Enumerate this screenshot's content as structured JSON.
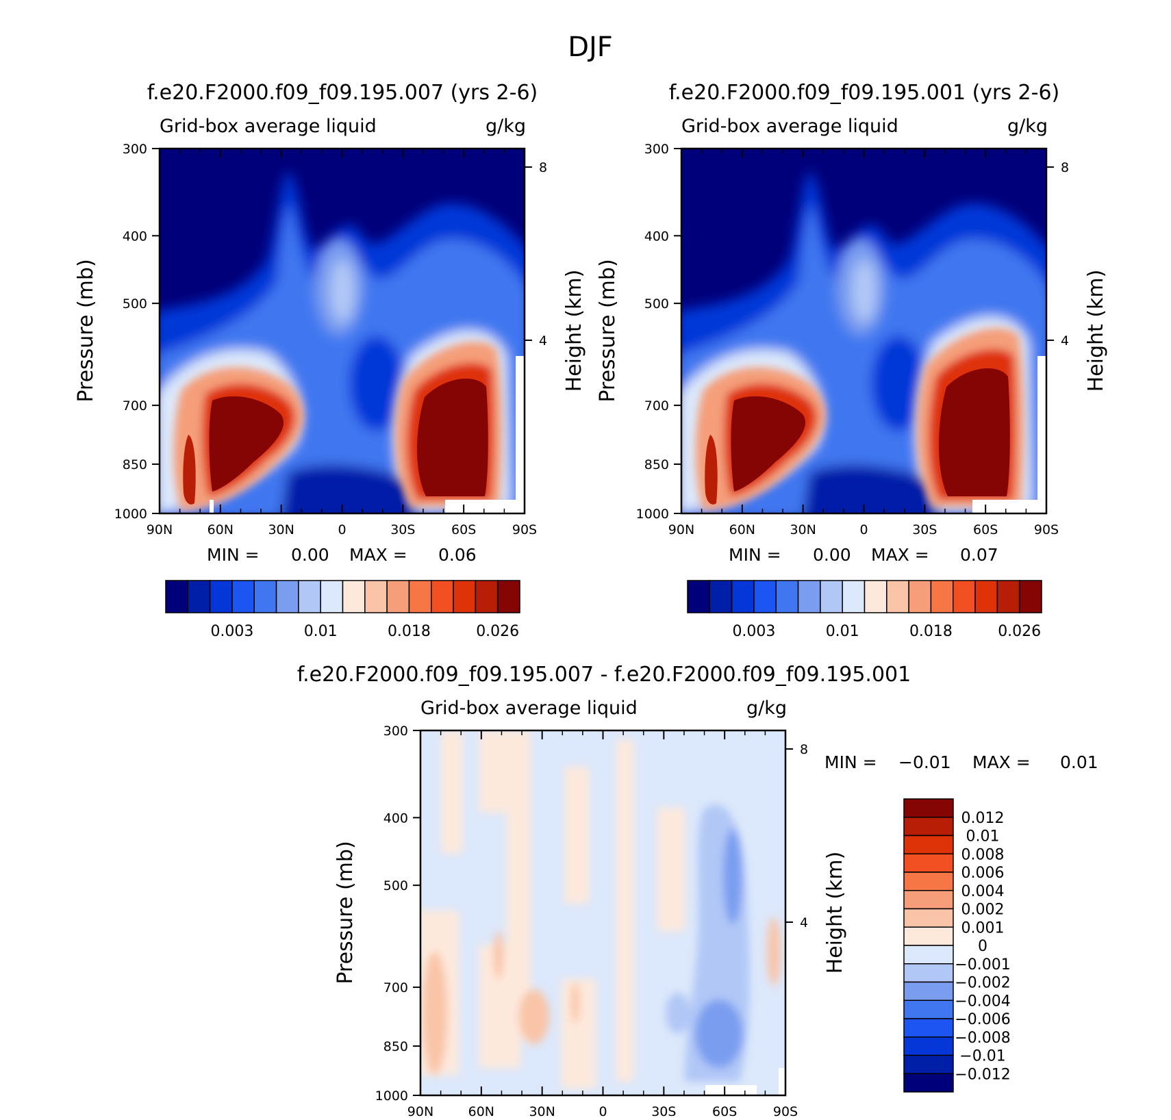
{
  "figure": {
    "title": "DJF"
  },
  "chart_data": [
    {
      "type": "heatmap",
      "title": "f.e20.F2000.f09_f09.195.007 (yrs 2-6)",
      "subtitle_left": "Grid-box average liquid",
      "subtitle_right": "g/kg",
      "xlabel": "",
      "ylabel": "Pressure (mb)",
      "ylabel_right": "Height (km)",
      "x_ticks": [
        "90N",
        "60N",
        "30N",
        "0",
        "30S",
        "60S",
        "90S"
      ],
      "y_ticks": [
        "300",
        "400",
        "500",
        "700",
        "850",
        "1000"
      ],
      "y_right_ticks": [
        "8",
        "4"
      ],
      "min_label": "MIN =",
      "min_value": "0.00",
      "max_label": "MAX =",
      "max_value": "0.06",
      "colorbar_labels": [
        "0.003",
        "0.01",
        "0.018",
        "0.026"
      ],
      "colorbar_colors": [
        "#00007a",
        "#001fa8",
        "#0537d8",
        "#1d55f2",
        "#4077f0",
        "#7a9df0",
        "#b1c7f6",
        "#dce8fb",
        "#fde9dc",
        "#f9c4a7",
        "#f59e79",
        "#f77646",
        "#f24f22",
        "#de3208",
        "#b81e06",
        "#850404"
      ]
    },
    {
      "type": "heatmap",
      "title": "f.e20.F2000.f09_f09.195.001 (yrs 2-6)",
      "subtitle_left": "Grid-box average liquid",
      "subtitle_right": "g/kg",
      "xlabel": "",
      "ylabel": "Pressure (mb)",
      "ylabel_right": "Height (km)",
      "x_ticks": [
        "90N",
        "60N",
        "30N",
        "0",
        "30S",
        "60S",
        "90S"
      ],
      "y_ticks": [
        "300",
        "400",
        "500",
        "700",
        "850",
        "1000"
      ],
      "y_right_ticks": [
        "8",
        "4"
      ],
      "min_label": "MIN =",
      "min_value": "0.00",
      "max_label": "MAX =",
      "max_value": "0.07",
      "colorbar_labels": [
        "0.003",
        "0.01",
        "0.018",
        "0.026"
      ],
      "colorbar_colors": [
        "#00007a",
        "#001fa8",
        "#0537d8",
        "#1d55f2",
        "#4077f0",
        "#7a9df0",
        "#b1c7f6",
        "#dce8fb",
        "#fde9dc",
        "#f9c4a7",
        "#f59e79",
        "#f77646",
        "#f24f22",
        "#de3208",
        "#b81e06",
        "#850404"
      ]
    },
    {
      "type": "heatmap",
      "title": "f.e20.F2000.f09_f09.195.007 - f.e20.F2000.f09_f09.195.001",
      "subtitle_left": "Grid-box average liquid",
      "subtitle_right": "g/kg",
      "xlabel": "",
      "ylabel": "Pressure (mb)",
      "ylabel_right": "Height (km)",
      "x_ticks": [
        "90N",
        "60N",
        "30N",
        "0",
        "30S",
        "60S",
        "90S"
      ],
      "y_ticks": [
        "300",
        "400",
        "500",
        "700",
        "850",
        "1000"
      ],
      "y_right_ticks": [
        "8",
        "4"
      ],
      "min_label": "MIN =",
      "min_value": "-0.01",
      "max_label": "MAX =",
      "max_value": "0.01",
      "colorbar_labels": [
        "0.012",
        "0.01",
        "0.008",
        "0.006",
        "0.004",
        "0.002",
        "0.001",
        "0",
        "-0.001",
        "-0.002",
        "-0.004",
        "-0.006",
        "-0.008",
        "-0.01",
        "-0.012"
      ],
      "colorbar_colors": [
        "#850404",
        "#b81e06",
        "#de3208",
        "#f24f22",
        "#f77646",
        "#f59e79",
        "#f9c4a7",
        "#fde9dc",
        "#dce8fb",
        "#b1c7f6",
        "#7a9df0",
        "#4077f0",
        "#1d55f2",
        "#0537d8",
        "#001fa8",
        "#00007a"
      ]
    }
  ]
}
